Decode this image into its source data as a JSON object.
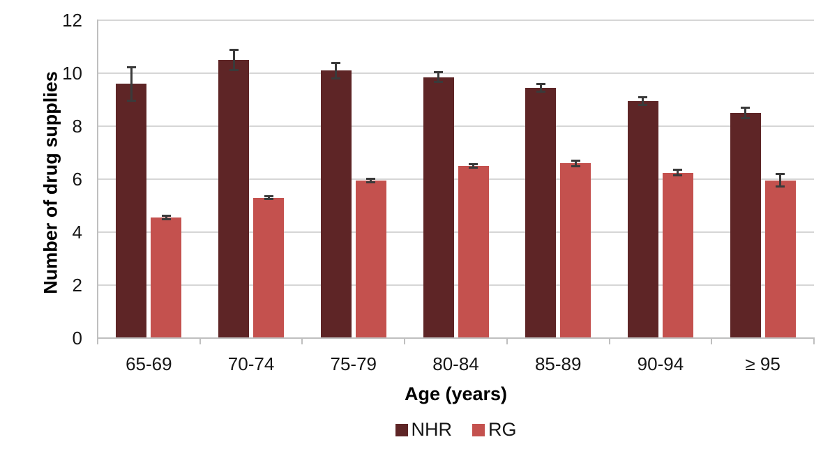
{
  "page": {
    "background": "#ffffff"
  },
  "chart_data": {
    "type": "bar",
    "title": "",
    "xlabel": "Age (years)",
    "ylabel": "Number of drug supplies",
    "ylim": [
      0,
      12
    ],
    "ytick_interval": 2,
    "ytick_labels": [
      "0",
      "2",
      "4",
      "6",
      "8",
      "10",
      "12"
    ],
    "grid": true,
    "legend_position": "bottom",
    "categories": [
      "65-69",
      "70-74",
      "75-79",
      "80-84",
      "85-89",
      "90-94",
      "≥ 95"
    ],
    "series": [
      {
        "name": "NHR",
        "color": "#5E2526",
        "values": [
          9.6,
          10.5,
          10.1,
          9.85,
          9.45,
          8.95,
          8.5
        ],
        "error_bars": [
          0.65,
          0.4,
          0.3,
          0.2,
          0.15,
          0.15,
          0.2
        ]
      },
      {
        "name": "RG",
        "color": "#C4514E",
        "values": [
          4.55,
          5.3,
          5.95,
          6.5,
          6.6,
          6.25,
          5.95
        ],
        "error_bars": [
          0.07,
          0.07,
          0.08,
          0.08,
          0.12,
          0.13,
          0.25
        ]
      }
    ],
    "error_bar_color": "#3A3A3A",
    "gridline_color": "#D6D6D6",
    "axis_line_color": "#BFBFBF"
  }
}
